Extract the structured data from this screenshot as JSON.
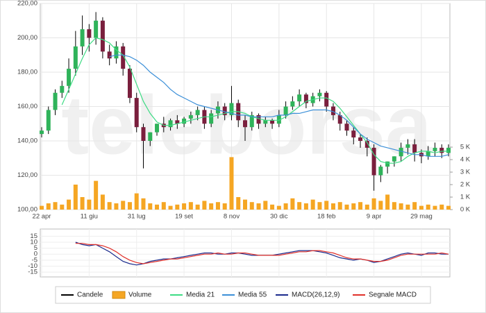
{
  "chart_data": [
    {
      "type": "candlestick",
      "watermark": "teleborsa",
      "categories": [
        "22 apr",
        null,
        null,
        null,
        null,
        null,
        null,
        "11 giu",
        null,
        null,
        null,
        null,
        null,
        null,
        "31 lug",
        null,
        null,
        null,
        null,
        null,
        null,
        "19 set",
        null,
        null,
        null,
        null,
        null,
        null,
        "8 nov",
        null,
        null,
        null,
        null,
        null,
        null,
        "30 dic",
        null,
        null,
        null,
        null,
        null,
        null,
        "18 feb",
        null,
        null,
        null,
        null,
        null,
        null,
        "9 apr",
        null,
        null,
        null,
        null,
        null,
        null,
        "29 mag",
        null,
        null,
        null,
        null
      ],
      "candles": {
        "name": "Candele",
        "color": "#000000",
        "up_color": "#2fb35a",
        "down_color": "#7a1f3d",
        "open": [
          144,
          146,
          158,
          168,
          172,
          182,
          195,
          205,
          200,
          210,
          192,
          188,
          195,
          182,
          165,
          148,
          140,
          145,
          150,
          148,
          152,
          150,
          153,
          155,
          158,
          150,
          156,
          160,
          155,
          162,
          152,
          148,
          155,
          150,
          152,
          150,
          155,
          160,
          163,
          167,
          162,
          166,
          168,
          160,
          155,
          150,
          146,
          142,
          140,
          136,
          120,
          125,
          128,
          131,
          136,
          138,
          133,
          131,
          134,
          136,
          133
        ],
        "high": [
          148,
          160,
          170,
          175,
          188,
          204,
          213,
          208,
          215,
          212,
          196,
          198,
          197,
          184,
          168,
          150,
          145,
          150,
          154,
          153,
          155,
          154,
          157,
          160,
          160,
          158,
          163,
          162,
          172,
          164,
          155,
          157,
          156,
          154,
          153,
          158,
          163,
          166,
          170,
          168,
          168,
          170,
          169,
          162,
          157,
          152,
          148,
          144,
          142,
          138,
          126,
          128,
          131,
          139,
          141,
          141,
          135,
          137,
          139,
          138,
          138
        ],
        "low": [
          142,
          144,
          155,
          165,
          168,
          178,
          190,
          192,
          196,
          188,
          184,
          185,
          178,
          162,
          145,
          124,
          137,
          143,
          145,
          146,
          147,
          148,
          150,
          152,
          147,
          148,
          153,
          152,
          152,
          148,
          140,
          146,
          147,
          148,
          147,
          148,
          153,
          158,
          160,
          159,
          160,
          163,
          157,
          152,
          146,
          143,
          138,
          136,
          131,
          111,
          116,
          121,
          125,
          128,
          132,
          128,
          127,
          129,
          131,
          130,
          131
        ],
        "close": [
          146,
          158,
          168,
          172,
          182,
          195,
          205,
          200,
          210,
          192,
          188,
          195,
          182,
          165,
          148,
          140,
          145,
          150,
          148,
          152,
          150,
          153,
          155,
          158,
          150,
          156,
          160,
          155,
          162,
          152,
          148,
          155,
          150,
          152,
          150,
          155,
          160,
          163,
          167,
          162,
          166,
          168,
          160,
          155,
          150,
          146,
          142,
          140,
          136,
          120,
          125,
          128,
          131,
          136,
          138,
          133,
          131,
          134,
          136,
          133,
          136
        ]
      },
      "volume": {
        "name": "Volume",
        "color": "#f5a623",
        "axis": "y2",
        "values": [
          0.3,
          0.5,
          0.6,
          0.4,
          0.8,
          2.0,
          1.0,
          0.8,
          2.3,
          1.2,
          0.6,
          0.5,
          0.7,
          0.6,
          1.3,
          0.9,
          0.5,
          0.4,
          0.6,
          0.3,
          0.4,
          0.5,
          0.6,
          0.4,
          0.7,
          0.5,
          0.6,
          0.5,
          4.2,
          1.0,
          0.8,
          0.6,
          0.5,
          0.7,
          0.4,
          0.3,
          0.5,
          0.9,
          0.6,
          0.5,
          0.8,
          0.6,
          0.7,
          0.5,
          0.6,
          0.4,
          0.5,
          0.6,
          0.4,
          0.9,
          0.7,
          1.2,
          0.6,
          0.5,
          0.4,
          0.6,
          0.3,
          0.4,
          0.3,
          0.4,
          0.3
        ]
      },
      "series": [
        {
          "name": "Media 21",
          "color": "#3ddc84",
          "values": [
            null,
            null,
            null,
            161,
            170,
            179,
            188,
            196,
            200,
            199,
            197,
            193,
            190,
            183,
            173,
            163,
            156,
            151,
            149,
            149,
            150,
            151,
            152,
            153,
            154,
            154,
            155,
            156,
            157,
            157,
            156,
            154,
            153,
            152,
            152,
            152,
            154,
            157,
            160,
            163,
            164,
            165,
            165,
            163,
            159,
            154,
            149,
            144,
            139,
            132,
            128,
            127,
            127,
            128,
            131,
            133,
            134,
            134,
            133,
            134,
            134
          ]
        },
        {
          "name": "Media 55",
          "color": "#3b8fd8",
          "values": [
            null,
            null,
            null,
            null,
            null,
            null,
            null,
            null,
            null,
            null,
            189,
            190,
            190,
            189,
            187,
            184,
            180,
            177,
            174,
            170,
            167,
            165,
            163,
            161,
            160,
            159,
            158,
            157,
            156,
            155,
            155,
            154,
            154,
            154,
            154,
            155,
            155,
            156,
            156,
            157,
            158,
            158,
            158,
            157,
            155,
            152,
            148,
            144,
            141,
            139,
            137,
            136,
            135,
            134,
            133,
            132,
            132,
            131,
            131,
            131,
            132
          ]
        }
      ],
      "ylim": [
        100,
        220
      ],
      "yticks": [
        {
          "value": 100,
          "label": "100,00"
        },
        {
          "value": 120,
          "label": "120,00"
        },
        {
          "value": 140,
          "label": "140,00"
        },
        {
          "value": 160,
          "label": "160,00"
        },
        {
          "value": 180,
          "label": "180,00"
        },
        {
          "value": 200,
          "label": "200,00"
        },
        {
          "value": 220,
          "label": "220,00"
        }
      ],
      "y2lim": [
        0,
        16.5
      ],
      "y2ticks": [
        {
          "value": 0,
          "label": "0 K"
        },
        {
          "value": 1,
          "label": "1 K"
        },
        {
          "value": 2,
          "label": "2 K"
        },
        {
          "value": 3,
          "label": "3 K"
        },
        {
          "value": 4,
          "label": "4 K"
        },
        {
          "value": 5,
          "label": "5 K"
        }
      ],
      "grid": true
    },
    {
      "type": "line",
      "series": [
        {
          "name": "MACD(26,12,9)",
          "color": "#1a2a8c",
          "values": [
            null,
            null,
            null,
            null,
            null,
            10,
            8,
            7,
            8,
            5,
            2,
            -2,
            -6,
            -8,
            -9,
            -8,
            -6,
            -5,
            -4,
            -4,
            -3,
            -2,
            -1,
            0,
            1,
            1,
            0,
            0,
            1,
            1,
            0,
            -1,
            -1,
            -1,
            -1,
            0,
            1,
            2,
            3,
            3,
            3,
            2,
            1,
            -1,
            -3,
            -4,
            -5,
            -4,
            -5,
            -7,
            -6,
            -4,
            -2,
            0,
            1,
            0,
            -1,
            1,
            1,
            0,
            0
          ]
        },
        {
          "name": "Segnale MACD",
          "color": "#e0302a",
          "values": [
            null,
            null,
            null,
            null,
            null,
            9,
            9,
            8,
            8,
            7,
            5,
            2,
            -2,
            -5,
            -7,
            -8,
            -7,
            -6,
            -5,
            -4,
            -4,
            -3,
            -2,
            -1,
            0,
            0,
            1,
            0,
            0,
            1,
            1,
            0,
            -1,
            -1,
            -1,
            -1,
            0,
            1,
            2,
            2,
            3,
            3,
            2,
            1,
            -1,
            -3,
            -4,
            -4,
            -5,
            -6,
            -6,
            -5,
            -3,
            -1,
            0,
            0,
            0,
            0,
            0,
            1,
            0
          ]
        }
      ],
      "ylim": [
        -19,
        21
      ],
      "yticks": [
        15,
        10,
        5,
        0,
        -5,
        -10,
        -15
      ],
      "grid": true
    }
  ]
}
